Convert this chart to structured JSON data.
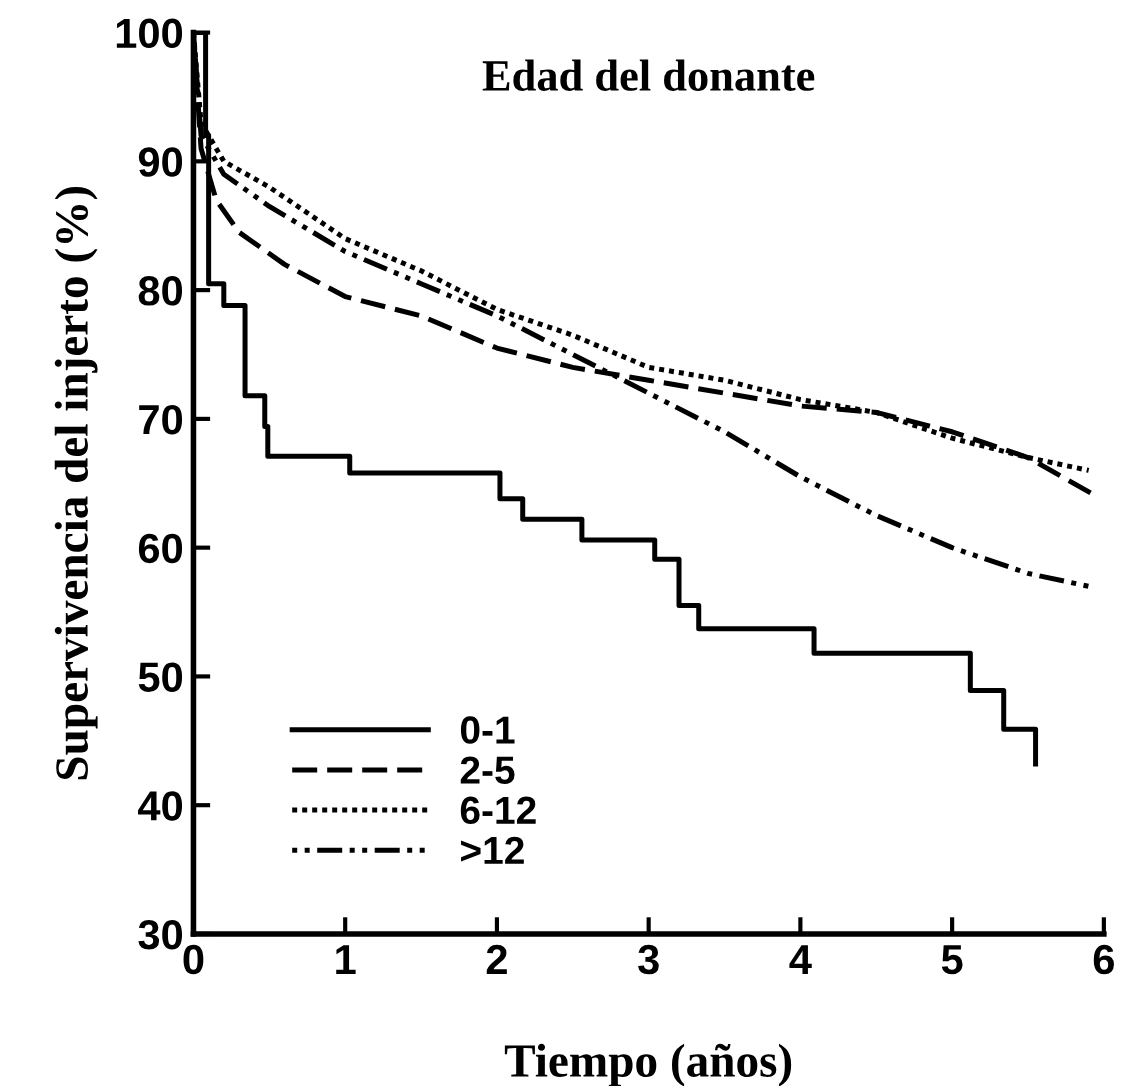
{
  "chart_data": {
    "type": "line",
    "title": "Edad del donante",
    "xlabel": "Tiempo (años)",
    "ylabel": "Supervivencia del injerto (%)",
    "xlim": [
      0,
      6
    ],
    "ylim": [
      30,
      100
    ],
    "xticks": [
      0,
      1,
      2,
      3,
      4,
      5,
      6
    ],
    "yticks": [
      30,
      40,
      50,
      60,
      70,
      80,
      90,
      100
    ],
    "grid": false,
    "legend": "bottom left",
    "marker": "none",
    "series": [
      {
        "name": "0-1",
        "type": "step",
        "line_style": "solid",
        "color": "#000000",
        "x": [
          0,
          0.08,
          0.1,
          0.2,
          0.34,
          0.47,
          0.49,
          1.03,
          2.02,
          2.17,
          2.56,
          3.04,
          3.2,
          3.33,
          4.09,
          5.12,
          5.34,
          5.55
        ],
        "values": [
          100,
          92,
          80.5,
          78.8,
          71.8,
          69.4,
          67.1,
          65.8,
          63.8,
          62.2,
          60.6,
          59.1,
          55.5,
          53.7,
          51.8,
          48.9,
          45.9,
          43.2
        ]
      },
      {
        "name": "2-5",
        "line_style": "dashed",
        "color": "#000000",
        "x": [
          0,
          0.05,
          0.15,
          0.3,
          0.6,
          1.0,
          1.5,
          2.0,
          2.5,
          3.0,
          3.5,
          4.0,
          4.5,
          5.0,
          5.5,
          5.95
        ],
        "values": [
          100,
          91,
          87,
          84.5,
          82,
          79.5,
          78,
          75.5,
          74,
          73,
          72,
          71,
          70.5,
          69,
          67,
          64
        ]
      },
      {
        "name": "6-12",
        "line_style": "dotted",
        "color": "#000000",
        "x": [
          0,
          0.05,
          0.2,
          0.5,
          1.0,
          1.5,
          2.0,
          2.5,
          3.0,
          3.5,
          4.0,
          4.5,
          5.0,
          5.5,
          5.9
        ],
        "values": [
          100,
          93,
          90,
          88,
          84,
          81.5,
          78.5,
          76.5,
          74,
          73,
          71.5,
          70.5,
          68.5,
          67,
          66
        ]
      },
      {
        "name": ">12",
        "line_style": "dashdot",
        "color": "#000000",
        "x": [
          0,
          0.05,
          0.2,
          0.5,
          1.0,
          1.5,
          2.0,
          2.5,
          3.0,
          3.5,
          4.0,
          4.5,
          5.0,
          5.5,
          5.9
        ],
        "values": [
          100,
          92,
          89,
          86.5,
          83,
          80.5,
          78,
          75,
          72,
          69,
          65.5,
          62.5,
          60,
          58,
          57
        ]
      }
    ]
  }
}
